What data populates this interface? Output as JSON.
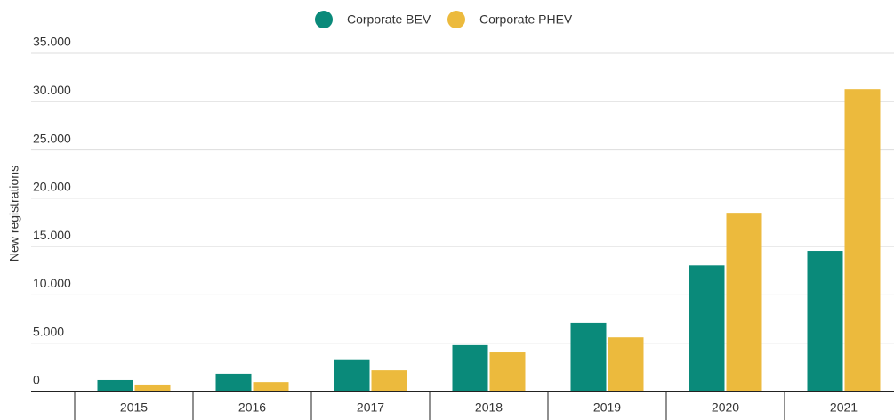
{
  "chart_data": {
    "type": "bar",
    "categories": [
      "2015",
      "2016",
      "2017",
      "2018",
      "2019",
      "2020",
      "2021"
    ],
    "series": [
      {
        "name": "Corporate BEV",
        "color": "#0a8a7a",
        "values": [
          1200,
          1850,
          3250,
          4800,
          7100,
          13050,
          14550
        ]
      },
      {
        "name": "Corporate PHEV",
        "color": "#ecba3d",
        "values": [
          650,
          1000,
          2200,
          4050,
          5600,
          18500,
          31300
        ]
      }
    ],
    "y_label": "New registrations",
    "ylim": [
      0,
      35000
    ],
    "yticks": [
      0,
      {
        "value": 5000,
        "label": "5.000"
      },
      {
        "value": 10000,
        "label": "10.000"
      },
      {
        "value": 15000,
        "label": "15.000"
      },
      {
        "value": 20000,
        "label": "20.000"
      },
      {
        "value": 25000,
        "label": "25.000"
      },
      {
        "value": 30000,
        "label": "30.000"
      },
      {
        "value": 35000,
        "label": "35.000"
      }
    ],
    "grid": true
  }
}
